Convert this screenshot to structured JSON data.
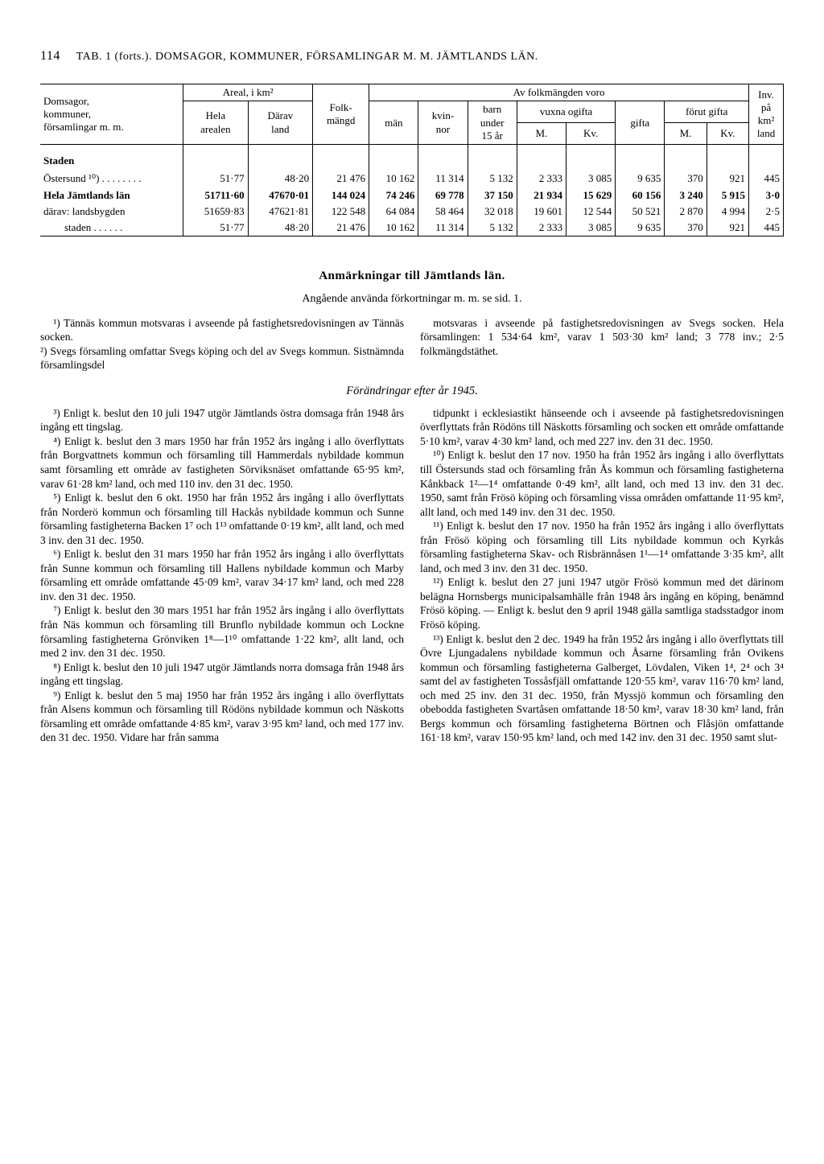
{
  "page_number": "114",
  "header": "TAB. 1 (forts.). DOMSAGOR, KOMMUNER, FÖRSAMLINGAR M. M.   JÄMTLANDS LÄN.",
  "table": {
    "col_headers": {
      "domsagor": "Domsagor,\nkommuner,\nförsamlingar m. m.",
      "areal": "Areal, i km²",
      "hela_arealen": "Hela\narealen",
      "darav_land": "Därav\nland",
      "folk": "Folk-\nmängd",
      "av_folk": "Av folkmängden voro",
      "man": "män",
      "kvinnor": "kvin-\nnor",
      "barn_under": "barn\nunder\n15 år",
      "vuxna_ogifta": "vuxna ogifta",
      "gifta": "gifta",
      "forut_gifta": "förut gifta",
      "m": "M.",
      "kv": "Kv.",
      "inv": "Inv.\npå\nkm²\nland"
    },
    "section_label": "Staden",
    "rows": [
      {
        "label": "Östersund ¹⁰) . . . . . . . .",
        "cells": [
          "51·77",
          "48·20",
          "21 476",
          "10 162",
          "11 314",
          "5 132",
          "2 333",
          "3 085",
          "9 635",
          "370",
          "921",
          "445"
        ],
        "bold": false
      },
      {
        "label": "Hela Jämtlands län",
        "cells": [
          "51711·60",
          "47670·01",
          "144 024",
          "74 246",
          "69 778",
          "37 150",
          "21 934",
          "15 629",
          "60 156",
          "3 240",
          "5 915",
          "3·0"
        ],
        "bold": true
      },
      {
        "label": "därav: landsbygden",
        "cells": [
          "51659·83",
          "47621·81",
          "122 548",
          "64 084",
          "58 464",
          "32 018",
          "19 601",
          "12 544",
          "50 521",
          "2 870",
          "4 994",
          "2·5"
        ],
        "bold": false
      },
      {
        "label": "staden . . . . . .",
        "cells": [
          "51·77",
          "48·20",
          "21 476",
          "10 162",
          "11 314",
          "5 132",
          "2 333",
          "3 085",
          "9 635",
          "370",
          "921",
          "445"
        ],
        "bold": false,
        "indent": true
      }
    ]
  },
  "notes": {
    "title": "Anmärkningar till Jämtlands län.",
    "subtitle": "Angående använda förkortningar m. m. se sid. 1.",
    "left_top": "¹) Tännäs kommun motsvaras i avseende på fastighetsredovisningen av Tännäs socken.\n²) Svegs församling omfattar Svegs köping och del av Svegs kommun. Sistnämnda församlingsdel",
    "right_top": "motsvaras i avseende på fastighetsredovisningen av Svegs socken. Hela församlingen: 1 534·64 km², varav 1 503·30 km² land; 3 778 inv.; 2·5 folkmängdstäthet.",
    "changes_title": "Förändringar efter år 1945.",
    "left_col": [
      "³) Enligt k. beslut den 10 juli 1947 utgör Jämtlands östra domsaga från 1948 års ingång ett tingslag.",
      "⁴) Enligt k. beslut den 3 mars 1950 har från 1952 års ingång i allo överflyttats från Borgvattnets kommun och församling till Hammerdals nybildade kommun samt församling ett område av fastigheten Sörviksnäset omfattande 65·95 km², varav 61·28 km² land, och med 110 inv. den 31 dec. 1950.",
      "⁵) Enligt k. beslut den 6 okt. 1950 har från 1952 års ingång i allo överflyttats från Norderö kommun och församling till Hackås nybildade kommun och Sunne församling fastigheterna Backen 1⁷ och 1¹³ omfattande 0·19 km², allt land, och med 3 inv. den 31 dec. 1950.",
      "⁶) Enligt k. beslut den 31 mars 1950 har från 1952 års ingång i allo överflyttats från Sunne kommun och församling till Hallens nybildade kommun och Marby församling ett område omfattande 45·09 km², varav 34·17 km² land, och med 228 inv. den 31 dec. 1950.",
      "⁷) Enligt k. beslut den 30 mars 1951 har från 1952 års ingång i allo överflyttats från Näs kommun och församling till Brunflo nybildade kommun och Lockne församling fastigheterna Grönviken 1⁸—1¹⁰ omfattande 1·22 km², allt land, och med 2 inv. den 31 dec. 1950.",
      "⁸) Enligt k. beslut den 10 juli 1947 utgör Jämtlands norra domsaga från 1948 års ingång ett tingslag.",
      "⁹) Enligt k. beslut den 5 maj 1950 har från 1952 års ingång i allo överflyttats från Alsens kommun och församling till Rödöns nybildade kommun och Näskotts församling ett område omfattande 4·85 km², varav 3·95 km² land, och med 177 inv. den 31 dec. 1950. Vidare har från samma"
    ],
    "right_col": [
      "tidpunkt i ecklesiastikt hänseende och i avseende på fastighetsredovisningen överflyttats från Rödöns till Näskotts församling och socken ett område omfattande 5·10 km², varav 4·30 km² land, och med 227 inv. den 31 dec. 1950.",
      "¹⁰) Enligt k. beslut den 17 nov. 1950 ha från 1952 års ingång i allo överflyttats till Östersunds stad och församling från Ås kommun och församling fastigheterna Kånkback 1²—1⁴ omfattande 0·49 km², allt land, och med 13 inv. den 31 dec. 1950, samt från Frösö köping och församling vissa områden omfattande 11·95 km², allt land, och med 149 inv. den 31 dec. 1950.",
      "¹¹) Enligt k. beslut den 17 nov. 1950 ha från 1952 års ingång i allo överflyttats från Frösö köping och församling till Lits nybildade kommun och Kyrkås församling fastigheterna Skav- och Risbrännåsen 1¹—1⁴ omfattande 3·35 km², allt land, och med 3 inv. den 31 dec. 1950.",
      "¹²) Enligt k. beslut den 27 juni 1947 utgör Frösö kommun med det därinom belägna Hornsbergs municipalsamhälle från 1948 års ingång en köping, benämnd Frösö köping. — Enligt k. beslut den 9 april 1948 gälla samtliga stadsstadgor inom Frösö köping.",
      "¹³) Enligt k. beslut den 2 dec. 1949 ha från 1952 års ingång i allo överflyttats till Övre Ljungadalens nybildade kommun och Åsarne församling från Ovikens kommun och församling fastigheterna Galberget, Lövdalen, Viken 1⁴, 2⁴ och 3⁴ samt del av fastigheten Tossåsfjäll omfattande 120·55 km², varav 116·70 km² land, och med 25 inv. den 31 dec. 1950, från Myssjö kommun och församling den obebodda fastigheten Svartåsen omfattande 18·50 km², varav 18·30 km² land, från Bergs kommun och församling fastigheterna Börtnen och Flåsjön omfattande 161·18 km², varav 150·95 km² land, och med 142 inv. den 31 dec. 1950 samt slut-"
    ]
  }
}
